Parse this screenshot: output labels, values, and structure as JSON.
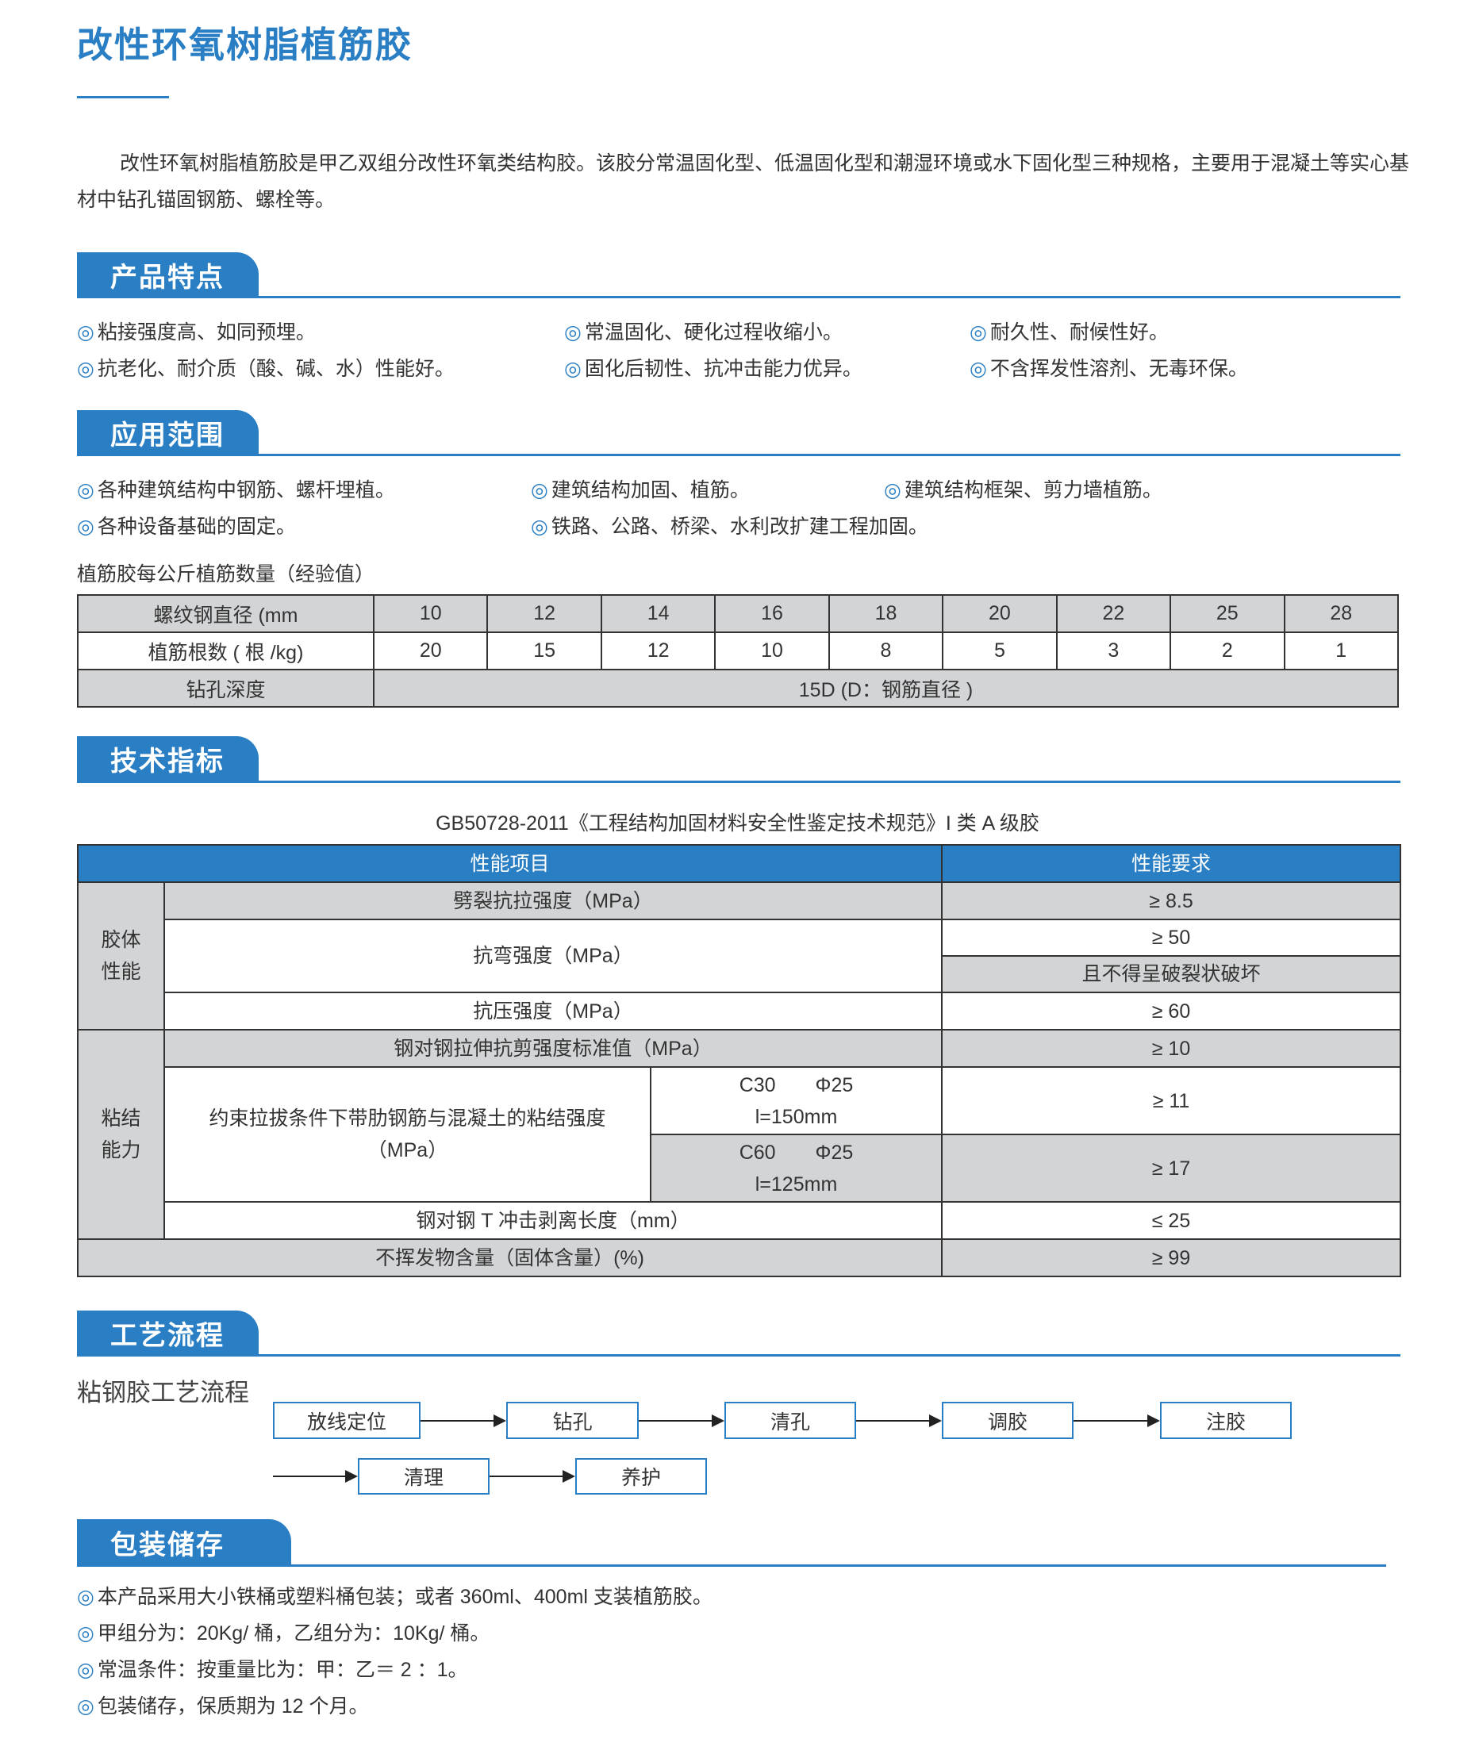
{
  "title": "改性环氧树脂植筋胶",
  "intro": "改性环氧树脂植筋胶是甲乙双组分改性环氧类结构胶。该胶分常温固化型、低温固化型和潮湿环境或水下固化型三种规格，主要用于混凝土等实心基材中钻孔锚固钢筋、螺栓等。",
  "bullet": "◎",
  "colors": {
    "accent": "#2a7fc4",
    "table_gray": "#d3d4d6"
  },
  "features": {
    "heading": "产品特点",
    "items": [
      "粘接强度高、如同预埋。",
      "常温固化、硬化过程收缩小。",
      "耐久性、耐候性好。",
      "抗老化、耐介质（酸、碱、水）性能好。",
      "固化后韧性、抗冲击能力优异。",
      "不含挥发性溶剂、无毒环保。"
    ]
  },
  "applications": {
    "heading": "应用范围",
    "items": [
      "各种建筑结构中钢筋、螺杆埋植。",
      "建筑结构加固、植筋。",
      "建筑结构框架、剪力墙植筋。",
      "各种设备基础的固定。",
      "铁路、公路、桥梁、水利改扩建工程加固。"
    ]
  },
  "rebar_table": {
    "caption": "植筋胶每公斤植筋数量（经验值）",
    "row_labels": [
      "螺纹钢直径 (mm",
      "植筋根数 ( 根 /kg)",
      "钻孔深度"
    ],
    "diameters": [
      "10",
      "12",
      "14",
      "16",
      "18",
      "20",
      "22",
      "25",
      "28"
    ],
    "counts": [
      "20",
      "15",
      "12",
      "10",
      "8",
      "5",
      "3",
      "2",
      "1"
    ],
    "depth": "15D (D：钢筋直径 )"
  },
  "specs": {
    "heading": "技术指标",
    "standard": "GB50728-2011《工程结构加固材料安全性鉴定技术规范》I 类 A 级胶",
    "header": [
      "性能项目",
      "性能要求"
    ],
    "group1": "胶体\n性能",
    "group2": "粘结\n能力",
    "rows": {
      "split": [
        "劈裂抗拉强度（MPa）",
        "≥ 8.5"
      ],
      "bend": [
        "抗弯强度（MPa）",
        "≥ 50",
        "且不得呈破裂状破坏"
      ],
      "compress": [
        "抗压强度（MPa）",
        "≥ 60"
      ],
      "shear": [
        "钢对钢拉伸抗剪强度标准值（MPa）",
        "≥ 10"
      ],
      "bond": [
        "约束拉拔条件下带肋钢筋与混凝土的粘结强度\n（MPa）",
        "C30　　Φ25\nl=150mm",
        "≥ 11",
        "C60　　Φ25\nl=125mm",
        "≥ 17"
      ],
      "peel": [
        "钢对钢 T 冲击剥离长度（mm）",
        "≤ 25"
      ],
      "solids": [
        "不挥发物含量（固体含量）(%)",
        "≥ 99"
      ]
    }
  },
  "process": {
    "heading": "工艺流程",
    "subtitle": "粘钢胶工艺流程",
    "steps": [
      "放线定位",
      "钻孔",
      "清孔",
      "调胶",
      "注胶",
      "清理",
      "养护"
    ]
  },
  "packaging": {
    "heading": "包装储存",
    "items": [
      "本产品采用大小铁桶或塑料桶包装；或者 360ml、400ml 支装植筋胶。",
      "甲组分为：20Kg/ 桶，乙组分为：10Kg/ 桶。",
      "常温条件：按重量比为：甲：乙＝ 2 ：1。",
      "包装储存，保质期为 12 个月。"
    ]
  }
}
